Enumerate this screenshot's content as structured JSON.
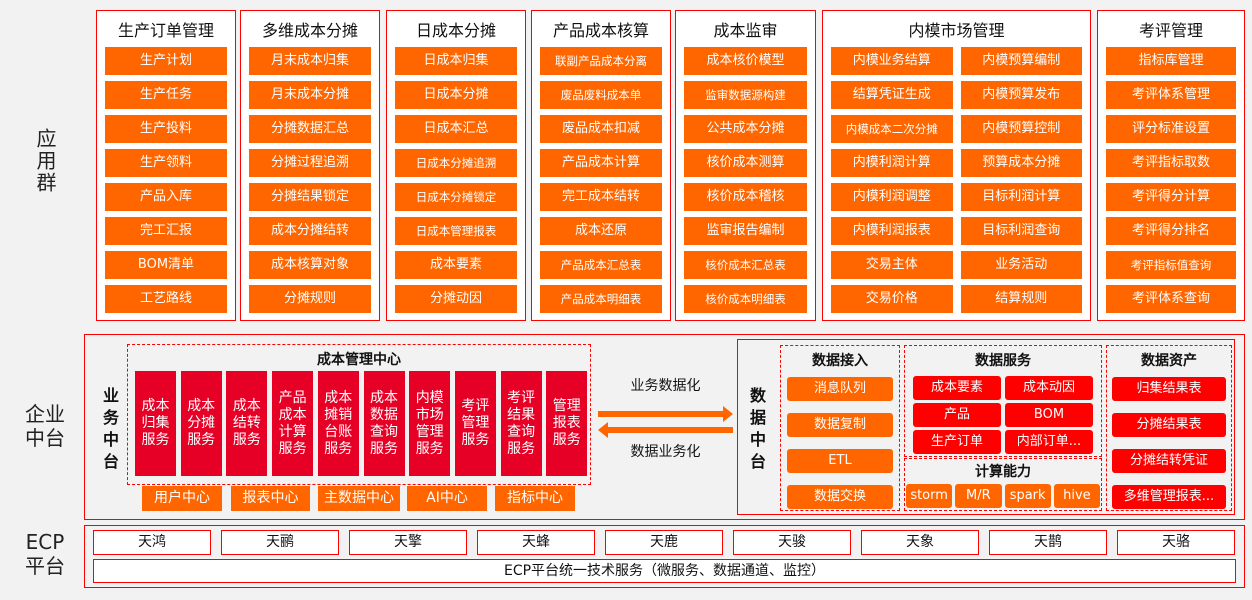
{
  "side_labels": {
    "app": "应用群",
    "mid": "企业中台",
    "ecp": "ECP平台"
  },
  "app_groups": [
    {
      "title": "生产订单管理",
      "items": [
        "生产计划",
        "生产任务",
        "生产投料",
        "生产领料",
        "产品入库",
        "完工汇报",
        "BOM清单",
        "工艺路线"
      ]
    },
    {
      "title": "多维成本分摊",
      "items": [
        "月末成本归集",
        "月末成本分摊",
        "分摊数据汇总",
        "分摊过程追溯",
        "分摊结果锁定",
        "成本分摊结转",
        "成本核算对象",
        "分摊规则"
      ]
    },
    {
      "title": "日成本分摊",
      "items": [
        "日成本归集",
        "日成本分摊",
        "日成本汇总",
        "日成本分摊追溯",
        "日成本分摊锁定",
        "日成本管理报表",
        "成本要素",
        "分摊动因"
      ]
    },
    {
      "title": "产品成本核算",
      "items": [
        "联副产品成本分离",
        "废品废料成本单",
        "废品成本扣减",
        "产品成本计算",
        "完工成本结转",
        "成本还原",
        "产品成本汇总表",
        "产品成本明细表"
      ]
    },
    {
      "title": "成本监审",
      "items": [
        "成本核价模型",
        "监审数据源构建",
        "公共成本分摊",
        "核价成本测算",
        "核价成本稽核",
        "监审报告编制",
        "核价成本汇总表",
        "核价成本明细表"
      ]
    },
    {
      "title": "内模市场管理",
      "items": [
        "内模业务结算",
        "内模预算编制",
        "结算凭证生成",
        "内模预算发布",
        "内模成本二次分摊",
        "内模预算控制",
        "内模利润计算",
        "预算成本分摊",
        "内模利润调整",
        "目标利润计算",
        "内模利润报表",
        "目标利润查询",
        "交易主体",
        "业务活动",
        "交易价格",
        "结算规则"
      ]
    },
    {
      "title": "考评管理",
      "items": [
        "指标库管理",
        "考评体系管理",
        "评分标准设置",
        "考评指标取数",
        "考评得分计算",
        "考评得分排名",
        "考评指标值查询",
        "考评体系查询"
      ]
    }
  ],
  "business": {
    "label": "业务中台",
    "center_title": "成本管理中心",
    "services": [
      "成本归集服务",
      "成本分摊服务",
      "成本结转服务",
      "产品成本计算服务",
      "成本摊销台账服务",
      "成本数据查询服务",
      "内模市场管理服务",
      "考评管理服务",
      "考评结果查询服务",
      "管理报表服务"
    ],
    "centers": [
      "用户中心",
      "报表中心",
      "主数据中心",
      "AI中心",
      "指标中心"
    ]
  },
  "arrows": {
    "right": "业务数据化",
    "left": "数据业务化"
  },
  "data": {
    "label": "数据中台",
    "ingest": {
      "title": "数据接入",
      "items": [
        "消息队列",
        "数据复制",
        "ETL",
        "数据交换"
      ]
    },
    "service": {
      "title": "数据服务",
      "items": [
        "成本要素",
        "成本动因",
        "产品",
        "BOM",
        "生产订单",
        "内部订单..."
      ]
    },
    "compute": {
      "title": "计算能力",
      "items": [
        "storm",
        "M/R",
        "spark",
        "hive"
      ]
    },
    "assets": {
      "title": "数据资产",
      "items": [
        "归集结果表",
        "分摊结果表",
        "分摊结转凭证",
        "多维管理报表..."
      ]
    }
  },
  "ecp": {
    "items": [
      "天鸿",
      "天鹂",
      "天擎",
      "天蜂",
      "天鹿",
      "天骏",
      "天象",
      "天鹊",
      "天骆"
    ],
    "platform": "ECP平台统一技术服务（微服务、数据通道、监控）"
  },
  "colors": {
    "orange": "#ff6600",
    "red": "#e60026",
    "border": "#ff0000"
  }
}
